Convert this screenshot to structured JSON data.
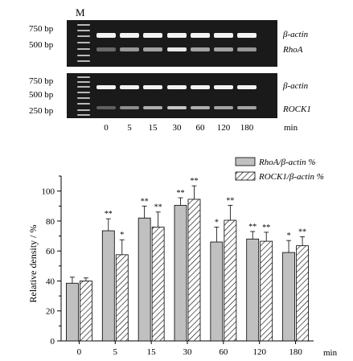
{
  "gels": {
    "marker_label": "M",
    "top": {
      "size_labels": [
        "750 bp",
        "500 bp"
      ],
      "band_labels": [
        "β-actin",
        "RhoA"
      ]
    },
    "bottom": {
      "size_labels": [
        "750 bp",
        "500 bp",
        "250 bp"
      ],
      "band_labels": [
        "β-actin",
        "ROCK1"
      ]
    },
    "lanes": [
      "0",
      "5",
      "15",
      "30",
      "60",
      "120",
      "180"
    ],
    "unit": "min"
  },
  "chart_data": {
    "type": "bar",
    "categories": [
      "0",
      "5",
      "15",
      "30",
      "60",
      "120",
      "180"
    ],
    "ylabel": "Relative density / %",
    "xlabel": "",
    "x_unit": "min",
    "ylim": [
      0,
      110
    ],
    "yticks": [
      0,
      20,
      40,
      60,
      80,
      100
    ],
    "legend_position": "top-right",
    "series": [
      {
        "name": "RhoA/β-actin %",
        "fill": "#c0c0c0",
        "values": [
          38.5,
          73.5,
          82,
          90.5,
          66,
          68,
          59
        ],
        "errors": [
          4,
          8,
          8,
          5,
          10,
          5,
          8
        ],
        "significance": [
          "",
          "**",
          "**",
          "**",
          "*",
          "**",
          "*"
        ]
      },
      {
        "name": "ROCK1/β-actin %",
        "fill": "hatch",
        "values": [
          40,
          57.5,
          76,
          94.5,
          80.5,
          66.5,
          63.5
        ],
        "errors": [
          2,
          10,
          10,
          9,
          10,
          6,
          6
        ],
        "significance": [
          "",
          "*",
          "**",
          "**",
          "**",
          "**",
          "**"
        ]
      }
    ]
  }
}
